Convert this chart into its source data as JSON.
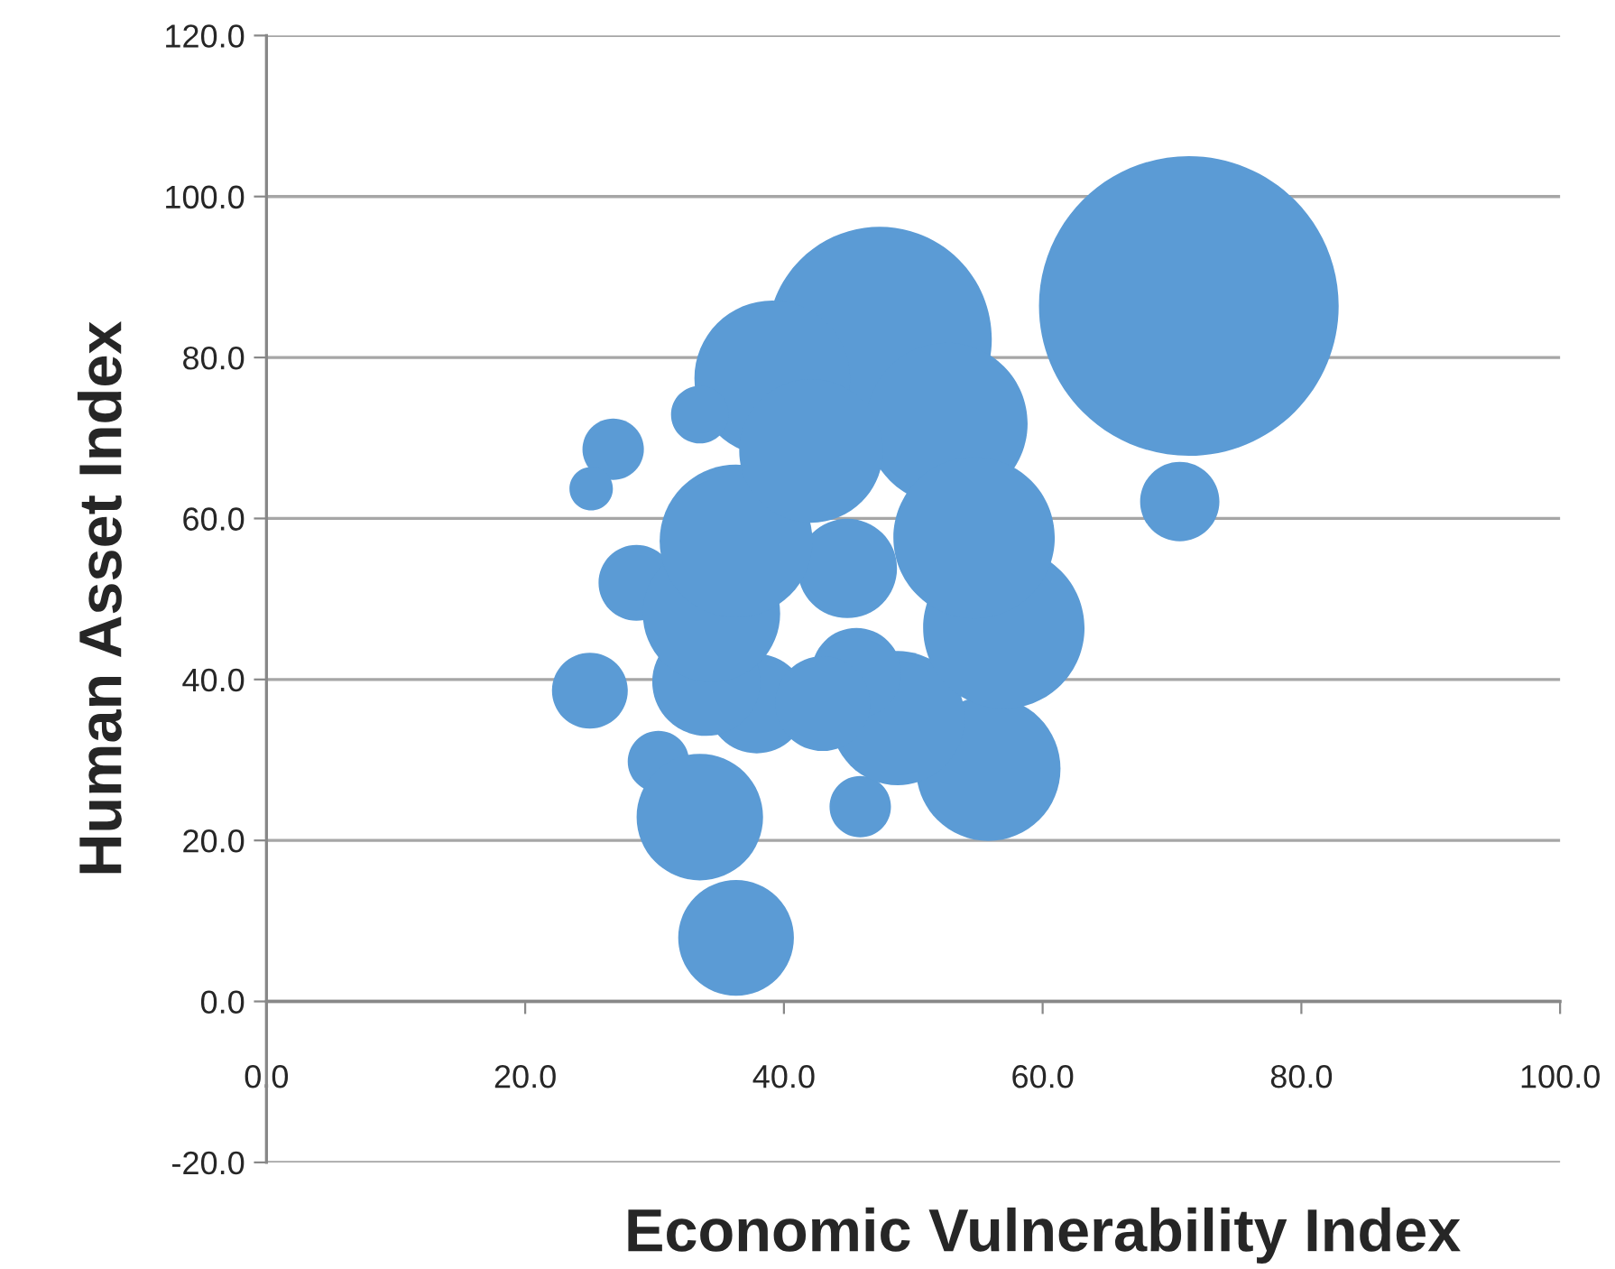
{
  "chart_data": {
    "type": "bubble",
    "xlabel": "Economic Vulnerability Index",
    "ylabel": "Human Asset Index",
    "xlim": [
      0,
      100
    ],
    "ylim": [
      -20,
      120
    ],
    "xticks": [
      {
        "value": 0,
        "label": "0.0"
      },
      {
        "value": 20,
        "label": "20.0"
      },
      {
        "value": 40,
        "label": "40.0"
      },
      {
        "value": 60,
        "label": "60.0"
      },
      {
        "value": 80,
        "label": "80.0"
      },
      {
        "value": 100,
        "label": "100.0"
      }
    ],
    "yticks": [
      {
        "value": -20,
        "label": "-20.0"
      },
      {
        "value": 0,
        "label": "0.0"
      },
      {
        "value": 20,
        "label": "20.0"
      },
      {
        "value": 40,
        "label": "40.0"
      },
      {
        "value": 60,
        "label": "60.0"
      },
      {
        "value": 80,
        "label": "80.0"
      },
      {
        "value": 100,
        "label": "100.0"
      },
      {
        "value": 120,
        "label": "120.0"
      }
    ],
    "grid": "y",
    "legend": false,
    "series": [
      {
        "color": "#5b9bd5",
        "x": [
          71.3,
          70.6,
          47.4,
          52.6,
          39.1,
          33.5,
          26.8,
          25.1,
          28.6,
          25.0,
          30.3,
          33.5,
          36.3,
          45.9,
          55.8,
          48.8,
          45.6,
          57.0,
          54.7,
          44.9,
          37.9,
          34.0,
          34.4,
          36.3,
          42.1,
          43.0
        ],
        "values": [
          86.4,
          62.1,
          82.3,
          71.8,
          77.4,
          72.9,
          68.6,
          63.7,
          52.0,
          38.6,
          29.8,
          22.9,
          7.9,
          24.2,
          28.9,
          35.2,
          40.8,
          46.4,
          57.6,
          53.8,
          37.0,
          39.7,
          48.2,
          57.2,
          68.4,
          37.0
        ],
        "sizes": [
          1,
          0.07,
          0.56,
          0.29,
          0.27,
          0.037,
          0.042,
          0.021,
          0.064,
          0.064,
          0.042,
          0.178,
          0.149,
          0.042,
          0.232,
          0.2,
          0.09,
          0.29,
          0.29,
          0.11,
          0.11,
          0.13,
          0.21,
          0.26,
          0.23,
          0.1
        ]
      }
    ]
  }
}
